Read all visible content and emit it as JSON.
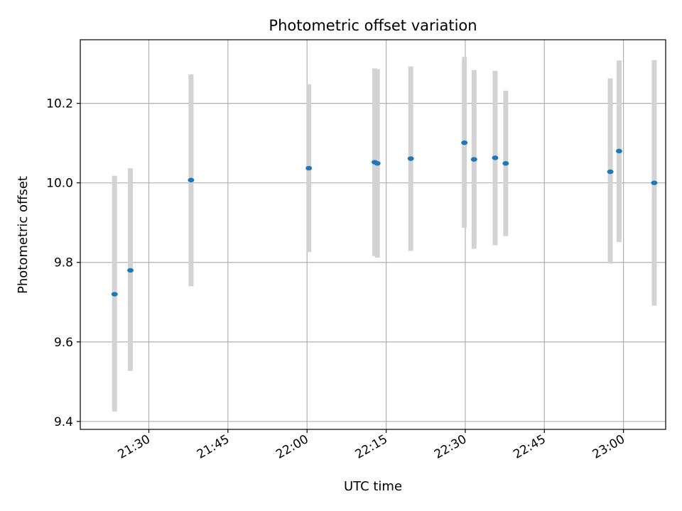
{
  "chart_data": {
    "type": "scatter",
    "title": "Photometric offset variation",
    "xlabel": "UTC time",
    "ylabel": "Photometric offset",
    "x_axis_kind": "time",
    "xlim": [
      "21:17",
      "23:08"
    ],
    "ylim": [
      9.38,
      10.36
    ],
    "x_ticks": [
      "21:30",
      "21:45",
      "22:00",
      "22:15",
      "22:30",
      "22:45",
      "23:00"
    ],
    "y_ticks": [
      9.4,
      9.6,
      9.8,
      10.0,
      10.2
    ],
    "y_tick_labels": [
      "9.4",
      "9.6",
      "9.8",
      "10.0",
      "10.2"
    ],
    "grid": true,
    "colors": {
      "point": "#1f77b4",
      "errorbar": "#d3d3d3",
      "grid": "#b0b0b0"
    },
    "points": [
      {
        "t": "21:23:30",
        "y": 9.72,
        "ymin": 9.425,
        "ymax": 10.018
      },
      {
        "t": "21:26:30",
        "y": 9.78,
        "ymin": 9.527,
        "ymax": 10.037
      },
      {
        "t": "21:38:00",
        "y": 10.007,
        "ymin": 9.74,
        "ymax": 10.273
      },
      {
        "t": "22:00:20",
        "y": 10.037,
        "ymin": 9.826,
        "ymax": 10.248
      },
      {
        "t": "22:12:50",
        "y": 10.052,
        "ymin": 9.816,
        "ymax": 10.288
      },
      {
        "t": "22:13:20",
        "y": 10.049,
        "ymin": 9.812,
        "ymax": 10.286
      },
      {
        "t": "22:19:40",
        "y": 10.061,
        "ymin": 9.829,
        "ymax": 10.293
      },
      {
        "t": "22:29:50",
        "y": 10.101,
        "ymin": 9.887,
        "ymax": 10.317
      },
      {
        "t": "22:31:40",
        "y": 10.059,
        "ymin": 9.834,
        "ymax": 10.284
      },
      {
        "t": "22:35:40",
        "y": 10.063,
        "ymin": 9.843,
        "ymax": 10.282
      },
      {
        "t": "22:37:40",
        "y": 10.049,
        "ymin": 9.866,
        "ymax": 10.232
      },
      {
        "t": "22:57:30",
        "y": 10.028,
        "ymin": 9.797,
        "ymax": 10.263
      },
      {
        "t": "22:59:10",
        "y": 10.08,
        "ymin": 9.851,
        "ymax": 10.308
      },
      {
        "t": "23:05:50",
        "y": 10.0,
        "ymin": 9.691,
        "ymax": 10.309
      }
    ]
  }
}
